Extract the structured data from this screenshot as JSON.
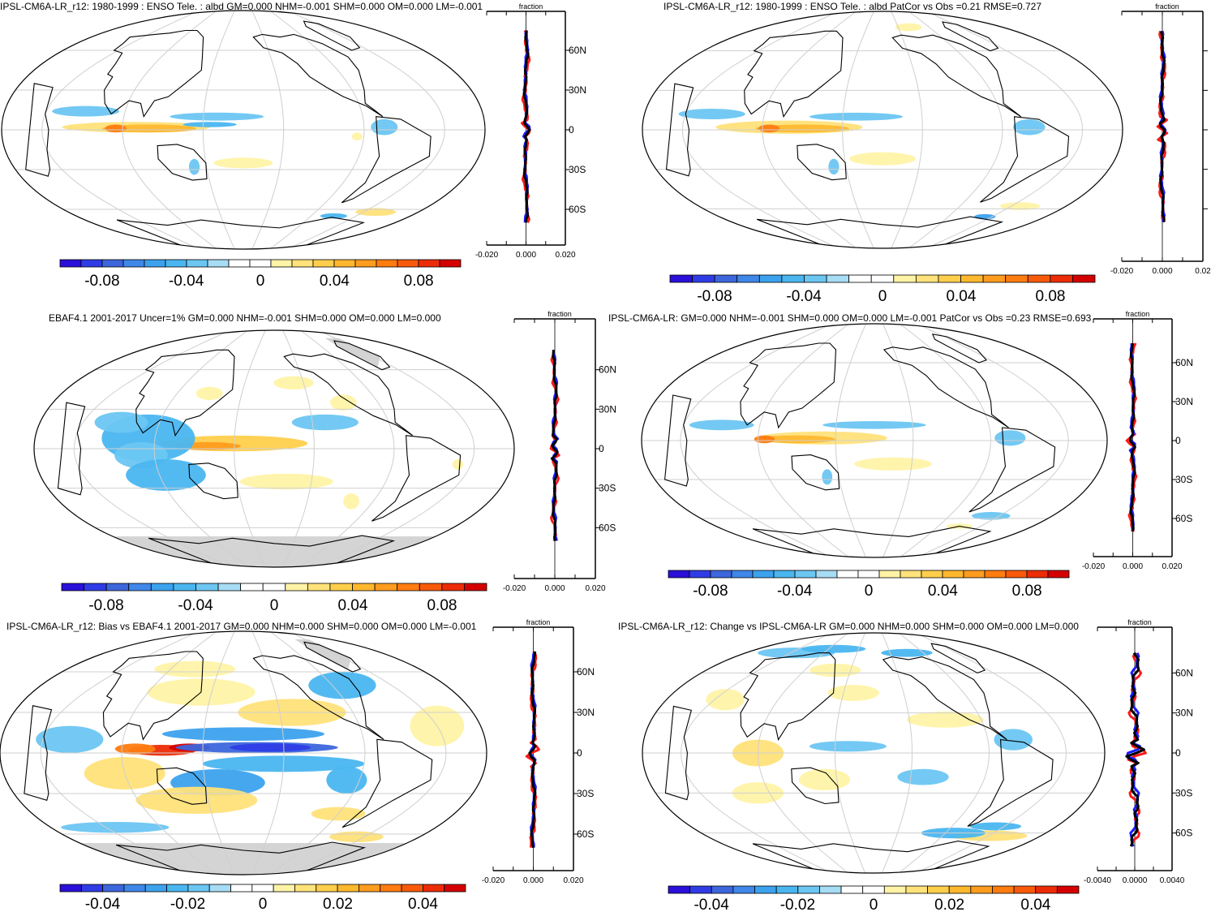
{
  "panels": [
    {
      "title": "IPSL-CM6A-LR_r12: 1980-1999 : ENSO Tele. : albd GM=0.000 NHM=-0.001 SHM=0.000 OM=0.000 LM=-0.001",
      "zonal_label": "fraction",
      "zonal_lat_ticks": [
        "60N",
        "30N",
        "0",
        "30S",
        "60S"
      ],
      "zonal_x_ticks": [
        "-0.020",
        "0.000",
        "0.020"
      ],
      "colorbar_ticks": [
        "-0.08",
        "-0.04",
        "0",
        "0.04",
        "0.08"
      ]
    },
    {
      "title": "IPSL-CM6A-LR_r12: 1980-1999 : ENSO Tele. : albd PatCor vs Obs =0.21 RMSE=0.727",
      "zonal_label": "fraction",
      "zonal_lat_ticks": [
        "",
        "",
        "",
        "",
        ""
      ],
      "zonal_x_ticks": [
        "-0.020",
        "0.000",
        "0.02"
      ],
      "colorbar_ticks": [
        "-0.08",
        "-0.04",
        "0",
        "0.04",
        "0.08"
      ]
    },
    {
      "title": "EBAF4.1 2001-2017 Uncer=1% GM=0.000 NHM=-0.001 SHM=0.000 OM=0.000 LM=0.000",
      "zonal_label": "fraction",
      "zonal_lat_ticks": [
        "60N",
        "30N",
        "0",
        "30S",
        "60S"
      ],
      "zonal_x_ticks": [
        "-0.020",
        "0.000",
        "0.020"
      ],
      "colorbar_ticks": [
        "-0.08",
        "-0.04",
        "0",
        "0.04",
        "0.08"
      ]
    },
    {
      "title": "IPSL-CM6A-LR: GM=0.000 NHM=-0.001 SHM=0.000 OM=0.000 LM=-0.001 PatCor vs Obs =0.23 RMSE=0.693",
      "zonal_label": "fraction",
      "zonal_lat_ticks": [
        "60N",
        "30N",
        "0",
        "30S",
        "60S"
      ],
      "zonal_x_ticks": [
        "-0.020",
        "0.000",
        "0.020"
      ],
      "colorbar_ticks": [
        "-0.08",
        "-0.04",
        "0",
        "0.04",
        "0.08"
      ]
    },
    {
      "title": "IPSL-CM6A-LR_r12: Bias vs EBAF4.1 2001-2017 GM=0.000 NHM=0.000 SHM=0.000 OM=0.000 LM=-0.001",
      "zonal_label": "fraction",
      "zonal_lat_ticks": [
        "60N",
        "30N",
        "0",
        "30S",
        "60S"
      ],
      "zonal_x_ticks": [
        "-0.020",
        "0.000",
        "0.020"
      ],
      "colorbar_ticks": [
        "-0.04",
        "-0.02",
        "0",
        "0.02",
        "0.04"
      ]
    },
    {
      "title": "IPSL-CM6A-LR_r12: Change vs IPSL-CM6A-LR GM=0.000 NHM=0.000 SHM=0.000 OM=0.000 LM=0.000",
      "zonal_label": "fraction",
      "zonal_lat_ticks": [
        "60N",
        "30N",
        "0",
        "30S",
        "60S"
      ],
      "zonal_x_ticks": [
        "-0.0040",
        "0.0000",
        "0.0040"
      ],
      "colorbar_ticks": [
        "-0.04",
        "-0.02",
        "0",
        "0.02",
        "0.04"
      ]
    }
  ],
  "palette": [
    "#2a10d8",
    "#2f3ce6",
    "#3d66dc",
    "#3f87e8",
    "#3ca2ee",
    "#4ab6f0",
    "#6cc6f2",
    "#a6dcf4",
    "#ffffff",
    "#ffffff",
    "#fff3a6",
    "#ffe27a",
    "#ffcf4c",
    "#ffb82e",
    "#ff9c1e",
    "#ff7c10",
    "#f85a0a",
    "#ec2c06",
    "#d40000"
  ],
  "line_colors": {
    "model": "#ff1a1a",
    "obs": "#1a1aff",
    "mean": "#000000"
  }
}
